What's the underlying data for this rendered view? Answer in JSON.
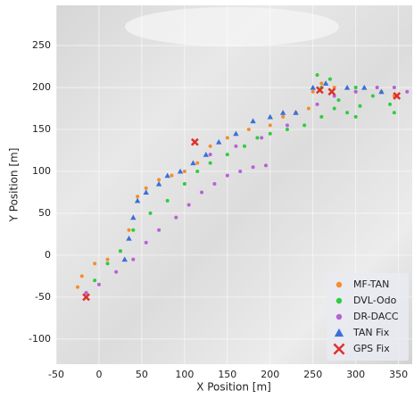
{
  "chart_data": {
    "type": "scatter",
    "x_label": "X Position [m]",
    "y_label": "Y Position [m]",
    "xlim": [
      -50,
      366
    ],
    "ylim": [
      -130,
      298
    ],
    "xticks": [
      -50,
      0,
      50,
      100,
      150,
      200,
      250,
      300,
      350
    ],
    "yticks": [
      -100,
      -50,
      0,
      50,
      100,
      150,
      200,
      250
    ],
    "grid": true,
    "legend": "lower right",
    "series": [
      {
        "name": "MF-TAN",
        "color": "#f28e2b",
        "marker": "circle",
        "x": [
          -15,
          -25,
          -20,
          -5,
          10,
          25,
          35,
          45,
          55,
          70,
          85,
          100,
          115,
          130,
          150,
          175,
          200,
          215,
          230,
          245,
          250,
          260,
          275,
          300,
          330,
          345
        ],
        "values": [
          -45,
          -38,
          -25,
          -10,
          -5,
          5,
          30,
          70,
          80,
          90,
          95,
          100,
          110,
          130,
          140,
          150,
          155,
          165,
          170,
          175,
          195,
          205,
          200,
          195,
          195,
          190
        ]
      },
      {
        "name": "DVL-Odo",
        "color": "#2ecc40",
        "marker": "circle",
        "x": [
          -15,
          -5,
          10,
          25,
          40,
          60,
          80,
          100,
          115,
          130,
          150,
          170,
          185,
          200,
          220,
          240,
          260,
          275,
          290,
          300,
          305,
          280,
          260,
          255,
          270,
          300,
          320,
          340,
          345
        ],
        "values": [
          -45,
          -30,
          -10,
          5,
          30,
          50,
          65,
          85,
          100,
          110,
          120,
          130,
          140,
          145,
          150,
          155,
          165,
          175,
          170,
          165,
          178,
          185,
          200,
          215,
          210,
          200,
          190,
          180,
          170
        ]
      },
      {
        "name": "DR-DACC",
        "color": "#b760d8",
        "marker": "circle",
        "x": [
          -15,
          0,
          20,
          40,
          55,
          70,
          90,
          105,
          120,
          135,
          150,
          165,
          180,
          195,
          130,
          160,
          190,
          220,
          255,
          275,
          300,
          325,
          345,
          360
        ],
        "values": [
          -45,
          -35,
          -20,
          -5,
          15,
          30,
          45,
          60,
          75,
          85,
          95,
          100,
          105,
          107,
          120,
          130,
          140,
          155,
          180,
          190,
          195,
          200,
          200,
          195
        ]
      },
      {
        "name": "TAN Fix",
        "color": "#3a6fd8",
        "marker": "triangle",
        "x": [
          30,
          35,
          40,
          45,
          55,
          70,
          80,
          95,
          110,
          125,
          140,
          160,
          180,
          200,
          215,
          230,
          250,
          265,
          290,
          310,
          330
        ],
        "values": [
          -5,
          20,
          45,
          65,
          75,
          85,
          95,
          100,
          110,
          120,
          135,
          145,
          160,
          165,
          170,
          170,
          200,
          205,
          200,
          200,
          195
        ]
      },
      {
        "name": "GPS Fix",
        "color": "#e0302a",
        "marker": "x",
        "x": [
          -15,
          112,
          258,
          272,
          348
        ],
        "values": [
          -50,
          135,
          197,
          195,
          190
        ]
      }
    ]
  }
}
